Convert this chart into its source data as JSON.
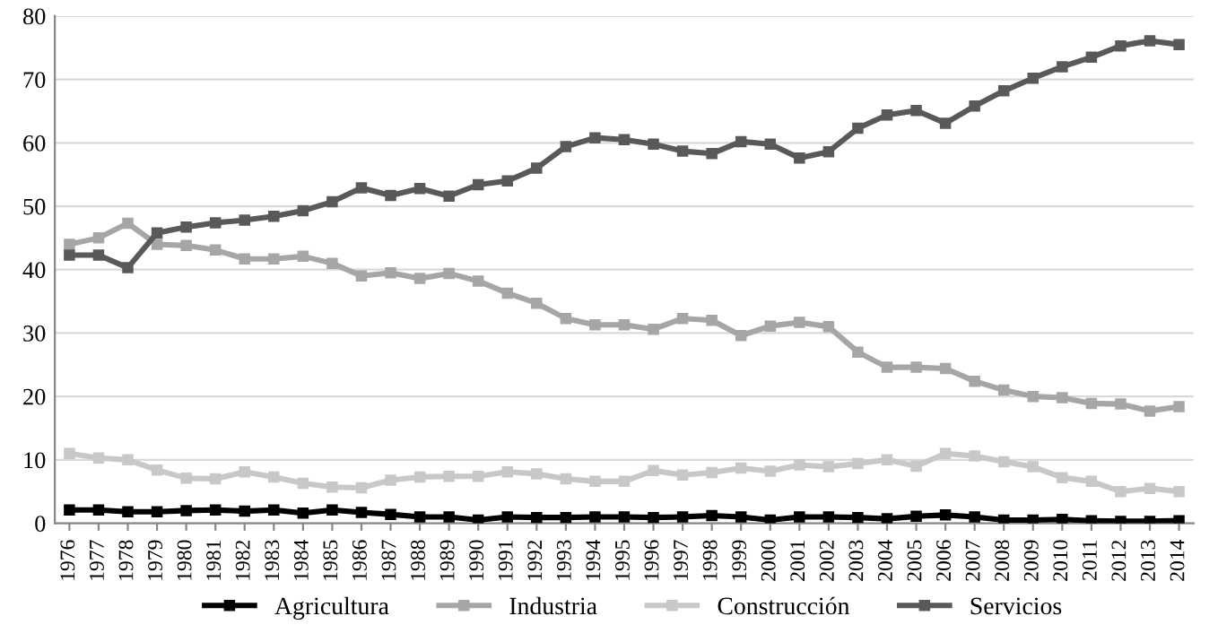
{
  "chart_data": {
    "type": "line",
    "categories": [
      "1976",
      "1977",
      "1978",
      "1979",
      "1980",
      "1981",
      "1982",
      "1983",
      "1984",
      "1985",
      "1986",
      "1987",
      "1988",
      "1989",
      "1990",
      "1991",
      "1992",
      "1993",
      "1994",
      "1995",
      "1996",
      "1997",
      "1998",
      "1999",
      "2000",
      "2001",
      "2002",
      "2003",
      "2004",
      "2005",
      "2006",
      "2007",
      "2008",
      "2009",
      "2010",
      "2011",
      "2012",
      "2013",
      "2014"
    ],
    "series": [
      {
        "name": "Agricultura",
        "color": "#000000",
        "values": [
          2.1,
          2.1,
          1.8,
          1.8,
          2.0,
          2.1,
          1.9,
          2.1,
          1.6,
          2.1,
          1.7,
          1.4,
          1.0,
          1.0,
          0.5,
          1.0,
          0.9,
          0.9,
          1.0,
          1.0,
          0.9,
          1.0,
          1.2,
          1.0,
          0.5,
          1.0,
          1.0,
          0.9,
          0.7,
          1.1,
          1.3,
          1.0,
          0.5,
          0.5,
          0.6,
          0.4,
          0.3,
          0.3,
          0.4
        ]
      },
      {
        "name": "Industria",
        "color": "#a6a6a6",
        "values": [
          44.0,
          45.0,
          47.3,
          44.0,
          43.8,
          43.1,
          41.7,
          41.7,
          42.1,
          41.0,
          39.0,
          39.5,
          38.6,
          39.4,
          38.2,
          36.3,
          34.7,
          32.3,
          31.3,
          31.3,
          30.6,
          32.3,
          32.0,
          29.6,
          31.1,
          31.7,
          31.0,
          27.0,
          24.6,
          24.6,
          24.4,
          22.4,
          21.0,
          20.0,
          19.8,
          18.9,
          18.8,
          17.7,
          18.4
        ]
      },
      {
        "name": "Construcción",
        "color": "#c8c8c8",
        "values": [
          11.0,
          10.3,
          10.0,
          8.4,
          7.1,
          7.0,
          8.1,
          7.3,
          6.3,
          5.7,
          5.6,
          6.8,
          7.3,
          7.4,
          7.4,
          8.1,
          7.8,
          7.0,
          6.6,
          6.6,
          8.3,
          7.6,
          8.0,
          8.7,
          8.2,
          9.2,
          8.9,
          9.4,
          10.0,
          9.0,
          11.0,
          10.6,
          9.7,
          8.9,
          7.2,
          6.6,
          5.0,
          5.5,
          5.0
        ]
      },
      {
        "name": "Servicios",
        "color": "#595959",
        "values": [
          42.3,
          42.3,
          40.3,
          45.8,
          46.7,
          47.4,
          47.8,
          48.4,
          49.3,
          50.7,
          52.9,
          51.7,
          52.8,
          51.6,
          53.4,
          54.0,
          56.0,
          59.4,
          60.8,
          60.5,
          59.8,
          58.7,
          58.3,
          60.2,
          59.8,
          57.6,
          58.6,
          62.3,
          64.4,
          65.1,
          63.1,
          65.8,
          68.2,
          70.2,
          72.0,
          73.5,
          75.3,
          76.1,
          75.5
        ]
      }
    ],
    "ylim": [
      0,
      80
    ],
    "yticks": [
      0,
      10,
      20,
      30,
      40,
      50,
      60,
      70,
      80
    ],
    "grid": "y",
    "legend": "bottom",
    "marker": "square",
    "line_style": "solid"
  }
}
